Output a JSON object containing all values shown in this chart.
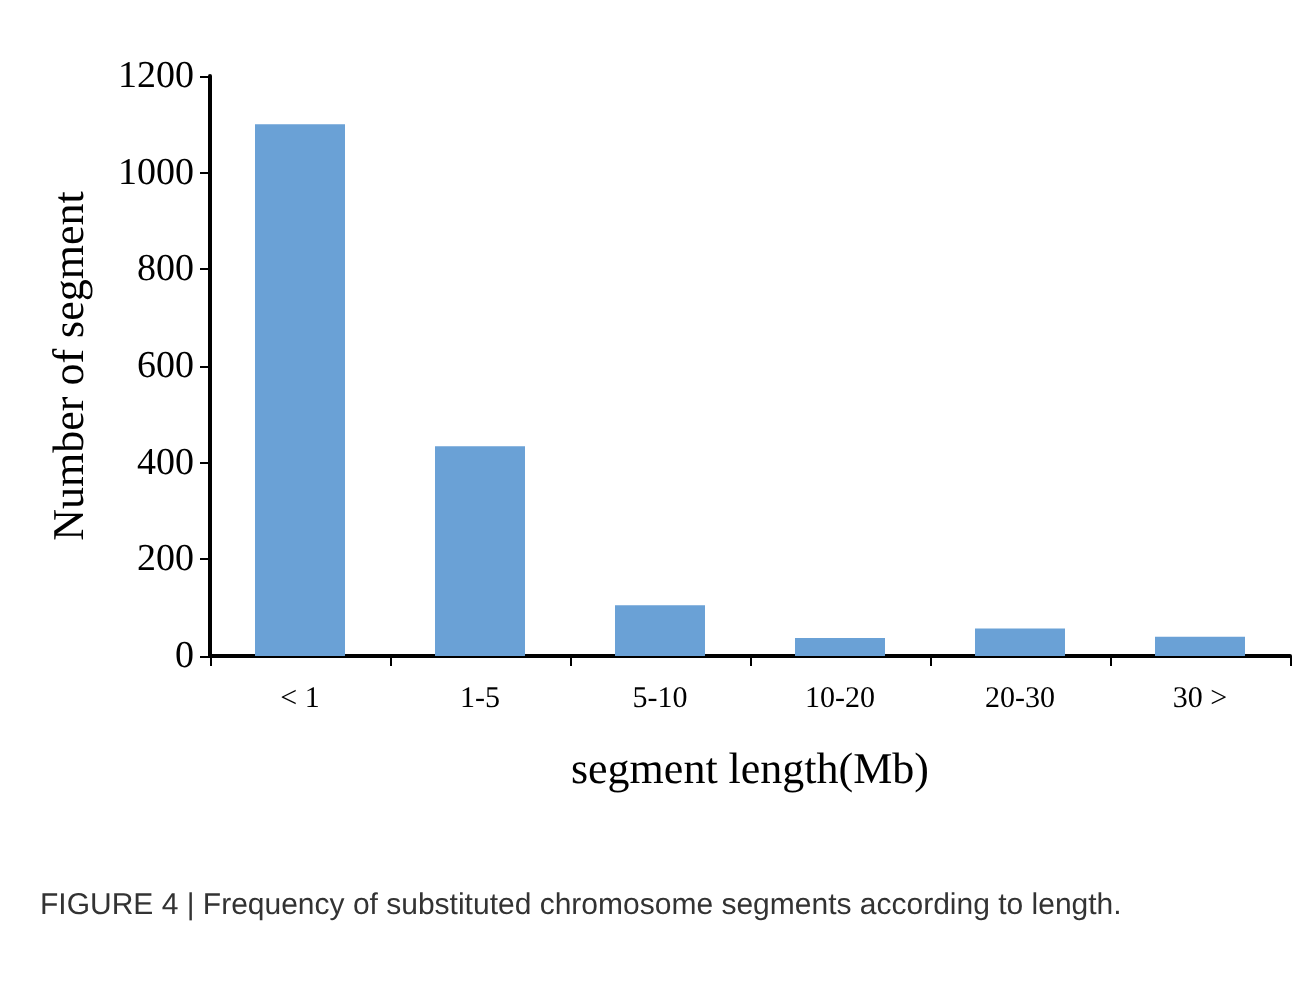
{
  "chart_data": {
    "type": "bar",
    "xlabel": "segment length(Mb)",
    "ylabel": "Number of segment",
    "categories": [
      "< 1",
      "1-5",
      "5-10",
      "10-20",
      "20-30",
      "30 >"
    ],
    "values": [
      1100,
      434,
      105,
      37,
      57,
      40
    ],
    "color": "#6aa1d6",
    "ylim": [
      0,
      1200
    ],
    "yticks": [
      0,
      200,
      400,
      600,
      800,
      1000,
      1200
    ],
    "grid": false,
    "annotations": [
      "FIGURE 4 | Frequency of substituted chromosome segments according to length."
    ]
  }
}
